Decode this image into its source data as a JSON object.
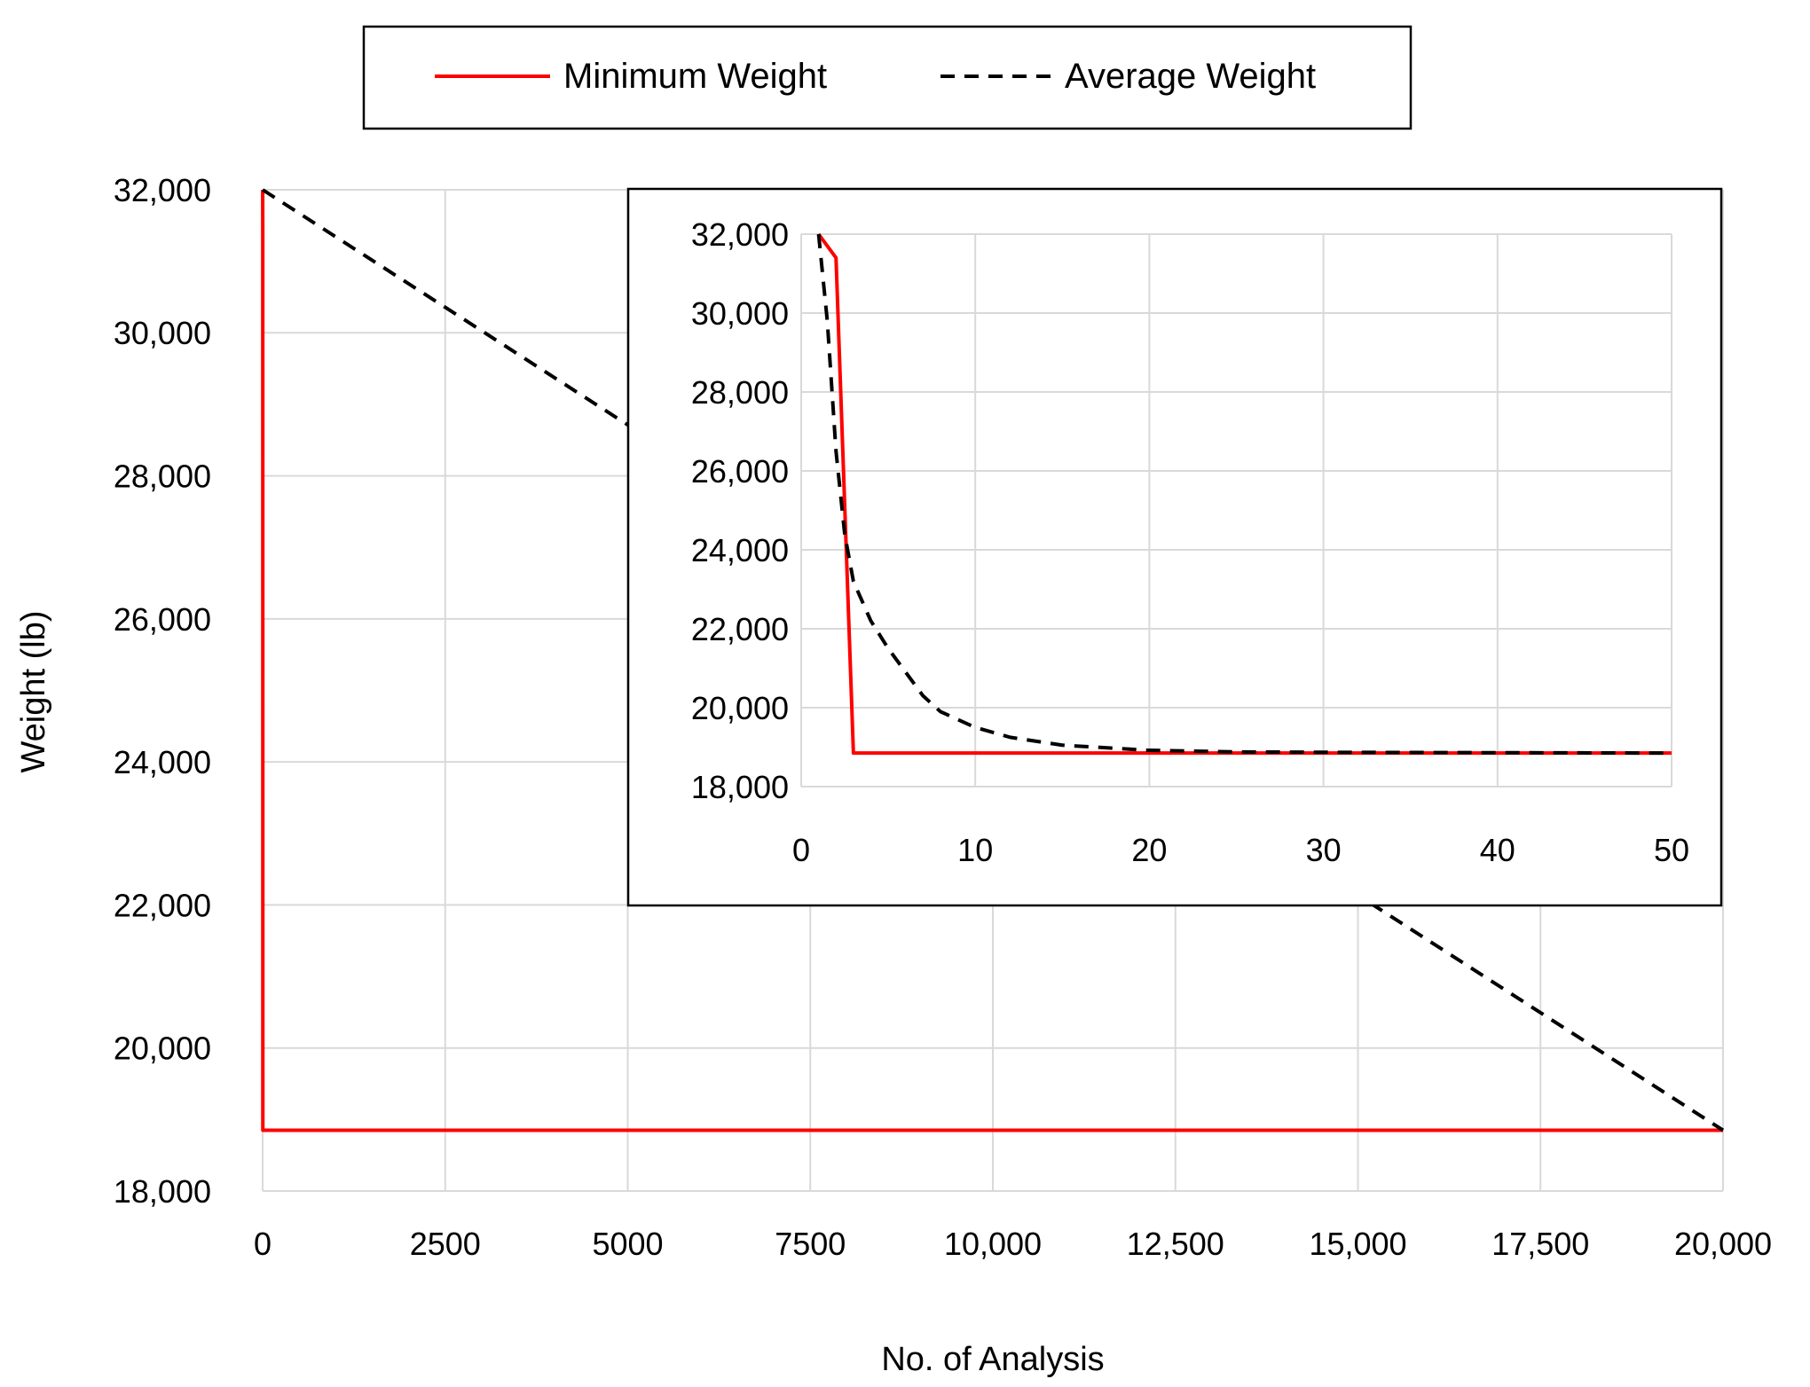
{
  "chart_data": {
    "type": "line",
    "xlabel": "No. of Analysis",
    "ylabel": "Weight (lb)",
    "xlim": [
      0,
      20000
    ],
    "ylim": [
      18000,
      32000
    ],
    "xticks": [
      0,
      2500,
      5000,
      7500,
      10000,
      12500,
      15000,
      17500,
      20000
    ],
    "xtick_labels": [
      "0",
      "2500",
      "5000",
      "7500",
      "10,000",
      "12,500",
      "15,000",
      "17,500",
      "20,000"
    ],
    "yticks": [
      18000,
      20000,
      22000,
      24000,
      26000,
      28000,
      30000,
      32000
    ],
    "ytick_labels": [
      "18,000",
      "20,000",
      "22,000",
      "24,000",
      "26,000",
      "28,000",
      "30,000",
      "32,000"
    ],
    "grid": true,
    "legend": {
      "placement": "top-center",
      "entries": [
        "Minimum Weight",
        "Average Weight"
      ]
    },
    "series": [
      {
        "name": "Minimum Weight",
        "color": "#ff0000",
        "style": "solid",
        "x": [
          1,
          2,
          3,
          20000
        ],
        "y": [
          32000,
          31400,
          18850,
          18850
        ]
      },
      {
        "name": "Average Weight",
        "color": "#000000",
        "style": "dashed",
        "x": [
          1,
          20000
        ],
        "y": [
          32000,
          18850
        ]
      }
    ],
    "inset": {
      "type": "line",
      "xlim": [
        0,
        50
      ],
      "ylim": [
        18000,
        32000
      ],
      "xticks": [
        0,
        10,
        20,
        30,
        40,
        50
      ],
      "xtick_labels": [
        "0",
        "10",
        "20",
        "30",
        "40",
        "50"
      ],
      "yticks": [
        18000,
        20000,
        22000,
        24000,
        26000,
        28000,
        30000,
        32000
      ],
      "ytick_labels": [
        "18,000",
        "20,000",
        "22,000",
        "24,000",
        "26,000",
        "28,000",
        "30,000",
        "32,000"
      ],
      "grid": true,
      "series": [
        {
          "name": "Minimum Weight",
          "color": "#ff0000",
          "style": "solid",
          "x": [
            1,
            2,
            3,
            50
          ],
          "y": [
            32000,
            31400,
            18850,
            18850
          ]
        },
        {
          "name": "Average Weight",
          "color": "#000000",
          "style": "dashed",
          "x": [
            1,
            1.5,
            2,
            2.5,
            3,
            4,
            5,
            6,
            7,
            8,
            10,
            12,
            15,
            20,
            25,
            30,
            40,
            50
          ],
          "y": [
            32000,
            29800,
            26500,
            24400,
            23200,
            22200,
            21500,
            20900,
            20300,
            19900,
            19500,
            19250,
            19050,
            18920,
            18880,
            18870,
            18860,
            18850
          ]
        }
      ]
    }
  }
}
